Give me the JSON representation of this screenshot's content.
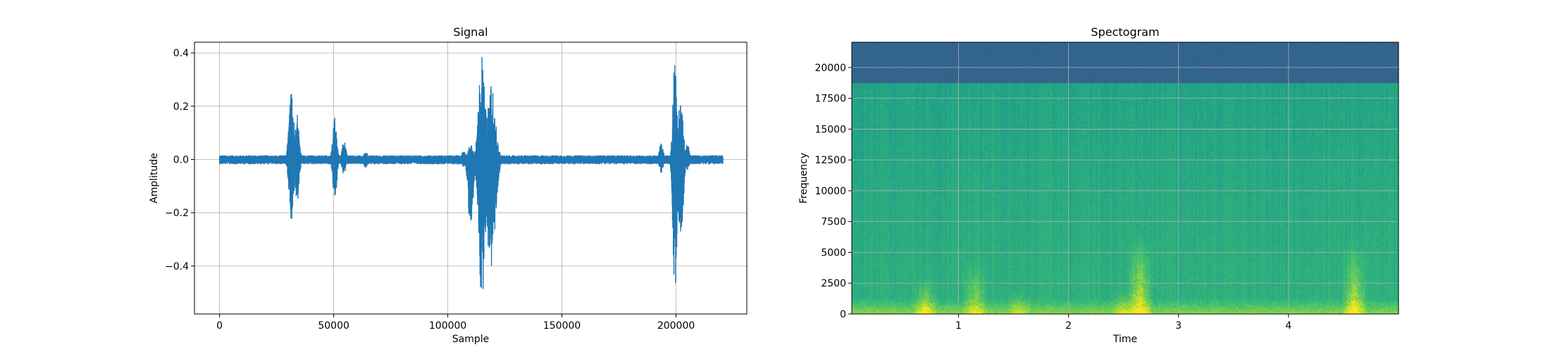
{
  "chart_data": [
    {
      "type": "line",
      "title": "Signal",
      "xlabel": "Sample",
      "ylabel": "Amplitude",
      "xlim": [
        -11000,
        231000
      ],
      "ylim": [
        -0.58,
        0.44
      ],
      "grid": true,
      "line_color": "#1f77b4",
      "x_ticks": [
        0,
        50000,
        100000,
        150000,
        200000
      ],
      "x_tick_labels": [
        "0",
        "50000",
        "100000",
        "150000",
        "200000"
      ],
      "y_ticks": [
        0.4,
        0.2,
        0.0,
        -0.2,
        -0.4
      ],
      "y_tick_labels": [
        "0.4",
        "0.2",
        "0.0",
        "−0.2",
        "−0.4"
      ],
      "sample_count": 220500,
      "baseline_noise_amplitude": 0.012,
      "bursts": [
        {
          "center": 31500,
          "width": 1500,
          "peak_max": 0.25,
          "peak_min": -0.23
        },
        {
          "center": 34000,
          "width": 1200,
          "peak_max": 0.18,
          "peak_min": -0.17
        },
        {
          "center": 50500,
          "width": 1200,
          "peak_max": 0.16,
          "peak_min": -0.16
        },
        {
          "center": 54500,
          "width": 1200,
          "peak_max": 0.07,
          "peak_min": -0.06
        },
        {
          "center": 64000,
          "width": 1200,
          "peak_max": 0.03,
          "peak_min": -0.03
        },
        {
          "center": 107000,
          "width": 1500,
          "peak_max": 0.03,
          "peak_min": -0.03
        },
        {
          "center": 110000,
          "width": 1500,
          "peak_max": 0.06,
          "peak_min": -0.28
        },
        {
          "center": 115000,
          "width": 2000,
          "peak_max": 0.39,
          "peak_min": -0.53
        },
        {
          "center": 119000,
          "width": 2500,
          "peak_max": 0.28,
          "peak_min": -0.43
        },
        {
          "center": 193500,
          "width": 1200,
          "peak_max": 0.06,
          "peak_min": -0.05
        },
        {
          "center": 199500,
          "width": 1200,
          "peak_max": 0.38,
          "peak_min": -0.51
        },
        {
          "center": 202000,
          "width": 1500,
          "peak_max": 0.24,
          "peak_min": -0.33
        },
        {
          "center": 205000,
          "width": 1200,
          "peak_max": 0.06,
          "peak_min": -0.04
        }
      ]
    },
    {
      "type": "heatmap",
      "title": "Spectogram",
      "xlabel": "Time",
      "ylabel": "Frequency",
      "xlim": [
        0.03,
        5.0
      ],
      "ylim": [
        0,
        22050
      ],
      "grid": true,
      "colormap": "viridis",
      "x_ticks": [
        1,
        2,
        3,
        4
      ],
      "x_tick_labels": [
        "1",
        "2",
        "3",
        "4"
      ],
      "y_ticks": [
        0,
        2500,
        5000,
        7500,
        10000,
        12500,
        15000,
        17500,
        20000
      ],
      "y_tick_labels": [
        "0",
        "2500",
        "5000",
        "7500",
        "10000",
        "12500",
        "15000",
        "17500",
        "20000"
      ],
      "cutoff_frequency": 18700,
      "above_cutoff_level": 0.32,
      "below_cutoff_level": 0.58,
      "low_freq_level": 0.82,
      "hot_spots": [
        {
          "time": 0.7,
          "max_freq": 3000,
          "strength": 0.35
        },
        {
          "time": 1.15,
          "max_freq": 4500,
          "strength": 0.3
        },
        {
          "time": 1.55,
          "max_freq": 2000,
          "strength": 0.2
        },
        {
          "time": 2.5,
          "max_freq": 2000,
          "strength": 0.25
        },
        {
          "time": 2.65,
          "max_freq": 6500,
          "strength": 0.45
        },
        {
          "time": 4.6,
          "max_freq": 6000,
          "strength": 0.4
        }
      ]
    }
  ]
}
